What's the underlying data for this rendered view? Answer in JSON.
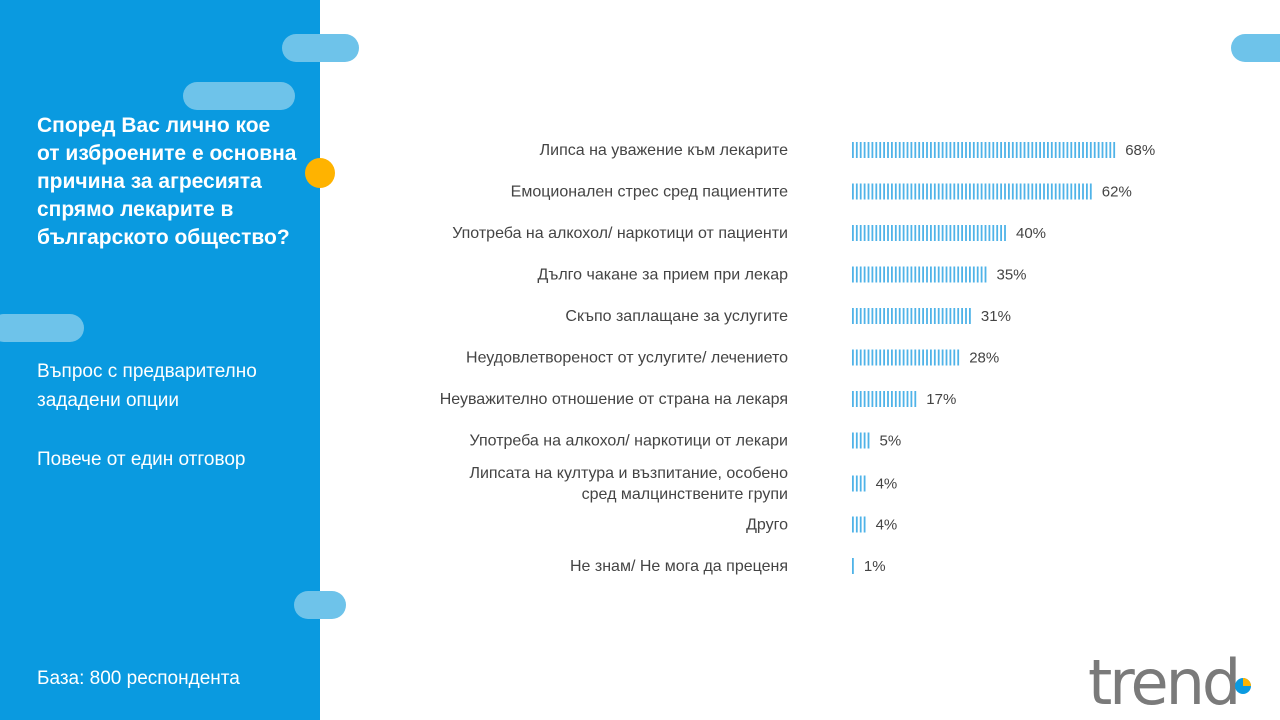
{
  "sidebar": {
    "question": "Според Вас лично кое от изброените е основна причина за агресията спрямо лекарите в българското общество?",
    "note1": "Въпрос с предварително зададени опции",
    "note2": "Повече от един отговор",
    "base": "База:  800 респондента"
  },
  "logo": {
    "text": "trend"
  },
  "colors": {
    "panel": "#0a9ae0",
    "bar": "#4fb3e8",
    "accent": "#ffb300",
    "pill": "#6ec3ea"
  },
  "chart_data": {
    "type": "bar",
    "orientation": "horizontal",
    "unit": "%",
    "categories": [
      [
        "Липса на уважение към лекарите"
      ],
      [
        "Емоционален стрес сред пациентите"
      ],
      [
        "Употреба на алкохол/ наркотици от пациенти"
      ],
      [
        "Дълго чакане за прием при лекар"
      ],
      [
        "Скъпо заплащане за услугите"
      ],
      [
        "Неудовлетвореност от услугите/ лечението"
      ],
      [
        "Неуважително отношение от страна на лекаря"
      ],
      [
        "Употреба на алкохол/ наркотици от лекари"
      ],
      [
        "Липсата на култура и възпитание, особено",
        "сред малцинствените групи"
      ],
      [
        "Друго"
      ],
      [
        "Не знам/ Не мога да преценя"
      ]
    ],
    "values": [
      68,
      62,
      40,
      35,
      31,
      28,
      17,
      5,
      4,
      4,
      1
    ],
    "value_labels": [
      "68%",
      "62%",
      "40%",
      "35%",
      "31%",
      "28%",
      "17%",
      "5%",
      "4%",
      "4%",
      "1%"
    ]
  }
}
